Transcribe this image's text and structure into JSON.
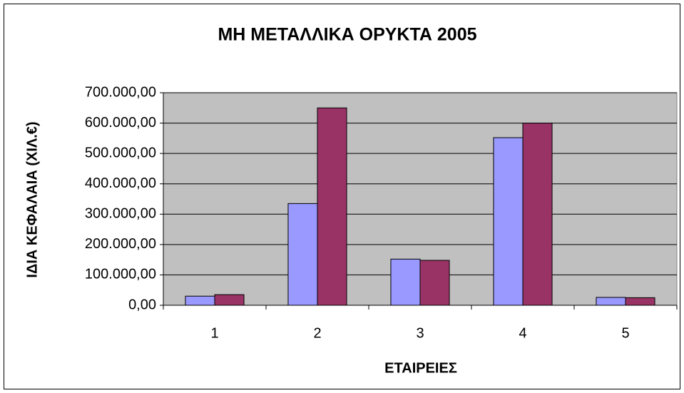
{
  "chart_data": {
    "type": "bar",
    "title": "ΜΗ ΜΕΤΑΛΛΙΚΑ ΟΡΥΚΤΑ 2005",
    "x_label": "ΕΤΑΙΡΕΙΕΣ",
    "y_label": "ΙΔΙΑ ΚΕΦΑΛΑΙΑ (ΧΙΛ.€)",
    "categories": [
      "1",
      "2",
      "3",
      "4",
      "5"
    ],
    "series": [
      {
        "color": "#9999ff",
        "values": [
          30000,
          335000,
          152000,
          552000,
          26000
        ]
      },
      {
        "color": "#993366",
        "values": [
          35000,
          650000,
          148000,
          600000,
          25000
        ]
      }
    ],
    "ylim": [
      0,
      700000
    ],
    "yticks": [
      {
        "value": 0,
        "label": "0,00"
      },
      {
        "value": 100000,
        "label": "100.000,00"
      },
      {
        "value": 200000,
        "label": "200.000,00"
      },
      {
        "value": 300000,
        "label": "300.000,00"
      },
      {
        "value": 400000,
        "label": "400.000,00"
      },
      {
        "value": 500000,
        "label": "500.000,00"
      },
      {
        "value": 600000,
        "label": "600.000,00"
      },
      {
        "value": 700000,
        "label": "700.000,00"
      }
    ],
    "grid": true,
    "plot_background": "#c0c0c0"
  }
}
